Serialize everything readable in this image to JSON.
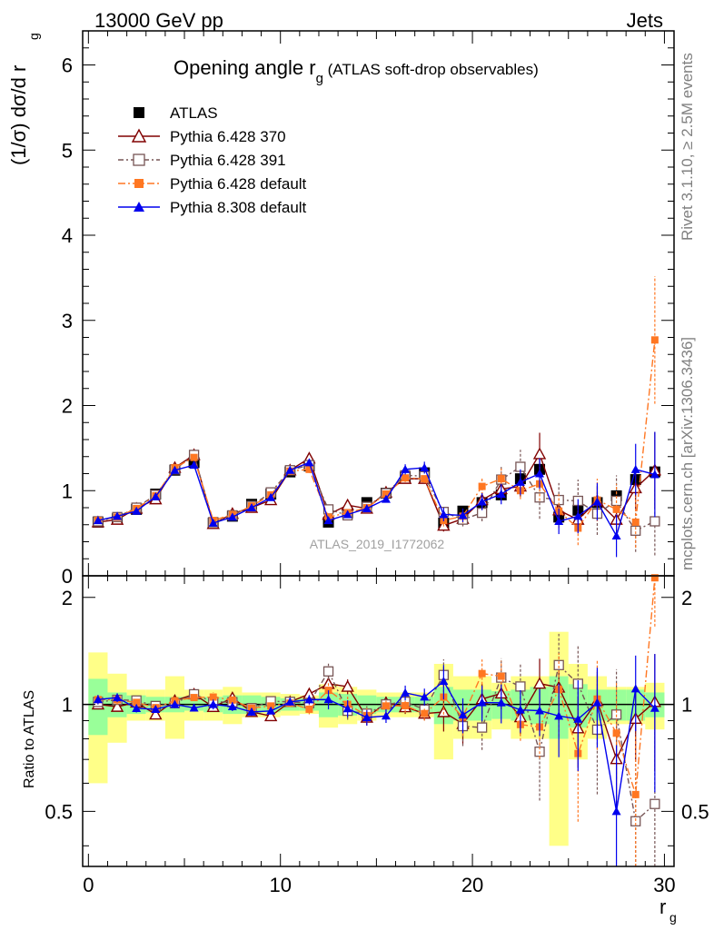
{
  "header": {
    "left": "13000 GeV pp",
    "right": "Jets",
    "side_upper": "Rivet 3.1.10, ≥ 2.5M events",
    "side_lower": "mcplots.cern.ch [arXiv:1306.3436]",
    "watermark": "ATLAS_2019_I1772062"
  },
  "title": {
    "main": "Opening angle r",
    "sub": "g",
    "rest": " (ATLAS soft-drop observables)"
  },
  "ylabel_main": "(1/σ) dσ/d r",
  "ylabel_sub": "g",
  "ylabel_ratio": "Ratio to ATLAS",
  "xlabel_main": "r",
  "xlabel_sub": "g",
  "colors": {
    "ref": "#000000",
    "s1": "#800000",
    "s2": "#775555",
    "s3": "#ff7722",
    "s4": "#0000ee",
    "band_inner": "#99ff99",
    "band_outer": "#ffff88"
  },
  "chart_data": {
    "type": "line",
    "x": [
      0.5,
      1.5,
      2.5,
      3.5,
      4.5,
      5.5,
      6.5,
      7.5,
      8.5,
      9.5,
      10.5,
      11.5,
      12.5,
      13.5,
      14.5,
      15.5,
      16.5,
      17.5,
      18.5,
      19.5,
      20.5,
      21.5,
      22.5,
      23.5,
      24.5,
      25.5,
      26.5,
      27.5,
      28.5,
      29.5
    ],
    "xlim": [
      -0.3,
      30.5
    ],
    "ylim": [
      0,
      6.4
    ],
    "ratio_ylim": [
      0.35,
      2.3
    ],
    "xticks": [
      0,
      10,
      20,
      30
    ],
    "yticks": [
      0,
      1,
      2,
      3,
      4,
      5,
      6
    ],
    "ratio_yticks": [
      0.5,
      1,
      2
    ],
    "reference": {
      "name": "ATLAS",
      "values": [
        0.63,
        0.67,
        0.78,
        0.96,
        1.24,
        1.33,
        0.62,
        0.7,
        0.84,
        0.96,
        1.22,
        1.29,
        0.63,
        0.74,
        0.86,
        0.97,
        1.16,
        1.21,
        0.62,
        0.76,
        0.86,
        0.95,
        1.14,
        1.25,
        0.69,
        0.77,
        0.86,
        0.94,
        1.13,
        1.22
      ],
      "band_inner": [
        0.18,
        0.08,
        0.06,
        0.05,
        0.05,
        0.04,
        0.05,
        0.06,
        0.06,
        0.05,
        0.04,
        0.04,
        0.08,
        0.07,
        0.06,
        0.05,
        0.05,
        0.05,
        0.12,
        0.1,
        0.1,
        0.09,
        0.1,
        0.12,
        0.2,
        0.14,
        0.1,
        0.1,
        0.1,
        0.08
      ],
      "band_outer": [
        0.4,
        0.22,
        0.1,
        0.1,
        0.2,
        0.1,
        0.1,
        0.12,
        0.08,
        0.08,
        0.07,
        0.06,
        0.14,
        0.12,
        0.1,
        0.08,
        0.08,
        0.08,
        0.3,
        0.2,
        0.2,
        0.15,
        0.2,
        0.2,
        0.6,
        0.3,
        0.2,
        0.12,
        0.12,
        0.15
      ]
    },
    "series": [
      {
        "name": "Pythia 6.428 370",
        "marker": "open-triangle",
        "dash": "",
        "values": [
          0.63,
          0.66,
          0.79,
          0.9,
          1.27,
          1.42,
          0.61,
          0.73,
          0.8,
          0.89,
          1.24,
          1.38,
          0.72,
          0.83,
          0.79,
          0.98,
          1.14,
          1.14,
          0.59,
          0.67,
          0.89,
          1.02,
          1.05,
          1.43,
          0.77,
          0.66,
          0.88,
          0.66,
          1.03,
          1.24
        ],
        "err": [
          0.02,
          0.02,
          0.02,
          0.02,
          0.03,
          0.03,
          0.02,
          0.02,
          0.02,
          0.02,
          0.03,
          0.04,
          0.04,
          0.04,
          0.04,
          0.04,
          0.05,
          0.05,
          0.07,
          0.08,
          0.09,
          0.1,
          0.12,
          0.25,
          0.15,
          0.15,
          0.18,
          0.2,
          0.25,
          0.45
        ]
      },
      {
        "name": "Pythia 6.428 391",
        "marker": "open-square",
        "dash": "6,3,2,3",
        "values": [
          0.64,
          0.69,
          0.8,
          0.95,
          1.25,
          1.42,
          0.63,
          0.71,
          0.82,
          0.98,
          1.24,
          1.3,
          0.78,
          0.71,
          0.81,
          0.97,
          1.18,
          1.17,
          0.75,
          0.66,
          0.74,
          1.13,
          1.28,
          0.92,
          0.89,
          0.88,
          0.73,
          0.88,
          0.53,
          0.64
        ],
        "err": [
          0.02,
          0.02,
          0.02,
          0.02,
          0.03,
          0.03,
          0.02,
          0.02,
          0.02,
          0.02,
          0.03,
          0.04,
          0.04,
          0.04,
          0.04,
          0.04,
          0.05,
          0.05,
          0.08,
          0.08,
          0.1,
          0.15,
          0.2,
          0.25,
          0.2,
          0.25,
          0.25,
          0.3,
          0.25,
          0.4
        ]
      },
      {
        "name": "Pythia 6.428 default",
        "marker": "filled-square",
        "dash": "8,3,2,3",
        "values": [
          0.65,
          0.69,
          0.79,
          0.94,
          1.27,
          1.39,
          0.65,
          0.72,
          0.82,
          0.95,
          1.23,
          1.25,
          0.69,
          0.74,
          0.8,
          0.96,
          1.15,
          1.14,
          0.65,
          0.7,
          1.05,
          1.14,
          1.0,
          1.08,
          0.76,
          0.56,
          0.89,
          0.78,
          0.63,
          2.77
        ],
        "err": [
          0.02,
          0.02,
          0.02,
          0.02,
          0.03,
          0.03,
          0.02,
          0.02,
          0.02,
          0.02,
          0.03,
          0.04,
          0.04,
          0.04,
          0.04,
          0.04,
          0.05,
          0.05,
          0.07,
          0.08,
          0.1,
          0.12,
          0.1,
          0.2,
          0.2,
          0.2,
          0.25,
          0.3,
          0.3,
          0.75
        ]
      },
      {
        "name": "Pythia 8.308 default",
        "marker": "filled-triangle",
        "dash": "",
        "values": [
          0.65,
          0.7,
          0.76,
          0.93,
          1.24,
          1.3,
          0.62,
          0.69,
          0.8,
          0.92,
          1.24,
          1.33,
          0.65,
          0.72,
          0.79,
          0.9,
          1.25,
          1.27,
          0.72,
          0.71,
          0.87,
          0.96,
          1.1,
          1.2,
          0.64,
          0.7,
          0.87,
          0.47,
          1.25,
          1.19
        ],
        "err": [
          0.02,
          0.02,
          0.02,
          0.02,
          0.03,
          0.03,
          0.02,
          0.02,
          0.02,
          0.02,
          0.03,
          0.04,
          0.04,
          0.04,
          0.04,
          0.04,
          0.06,
          0.07,
          0.08,
          0.08,
          0.1,
          0.12,
          0.15,
          0.18,
          0.15,
          0.2,
          0.22,
          0.25,
          0.3,
          0.5
        ]
      }
    ]
  }
}
